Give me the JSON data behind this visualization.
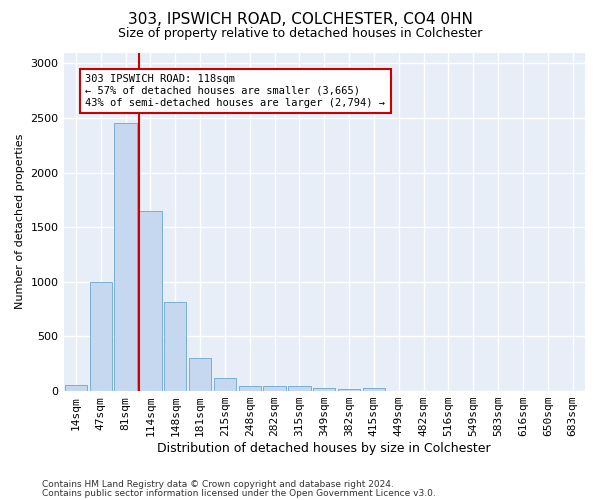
{
  "title1": "303, IPSWICH ROAD, COLCHESTER, CO4 0HN",
  "title2": "Size of property relative to detached houses in Colchester",
  "xlabel": "Distribution of detached houses by size in Colchester",
  "ylabel": "Number of detached properties",
  "categories": [
    "14sqm",
    "47sqm",
    "81sqm",
    "114sqm",
    "148sqm",
    "181sqm",
    "215sqm",
    "248sqm",
    "282sqm",
    "315sqm",
    "349sqm",
    "382sqm",
    "415sqm",
    "449sqm",
    "482sqm",
    "516sqm",
    "549sqm",
    "583sqm",
    "616sqm",
    "650sqm",
    "683sqm"
  ],
  "values": [
    60,
    1000,
    2450,
    1650,
    820,
    300,
    120,
    50,
    45,
    50,
    30,
    20,
    30,
    0,
    0,
    0,
    0,
    0,
    0,
    0,
    0
  ],
  "bar_color": "#c5d8f0",
  "bar_edge_color": "#7aaed6",
  "red_line_color": "#cc0000",
  "annotation_line1": "303 IPSWICH ROAD: 118sqm",
  "annotation_line2": "← 57% of detached houses are smaller (3,665)",
  "annotation_line3": "43% of semi-detached houses are larger (2,794) →",
  "annotation_box_facecolor": "#ffffff",
  "annotation_box_edgecolor": "#cc0000",
  "ylim": [
    0,
    3100
  ],
  "yticks": [
    0,
    500,
    1000,
    1500,
    2000,
    2500,
    3000
  ],
  "bg_color": "#e8eef8",
  "grid_color": "#ffffff",
  "fig_bg_color": "#ffffff",
  "footer1": "Contains HM Land Registry data © Crown copyright and database right 2024.",
  "footer2": "Contains public sector information licensed under the Open Government Licence v3.0.",
  "title1_fontsize": 11,
  "title2_fontsize": 9,
  "xlabel_fontsize": 9,
  "ylabel_fontsize": 8,
  "tick_fontsize": 8,
  "footer_fontsize": 6.5
}
